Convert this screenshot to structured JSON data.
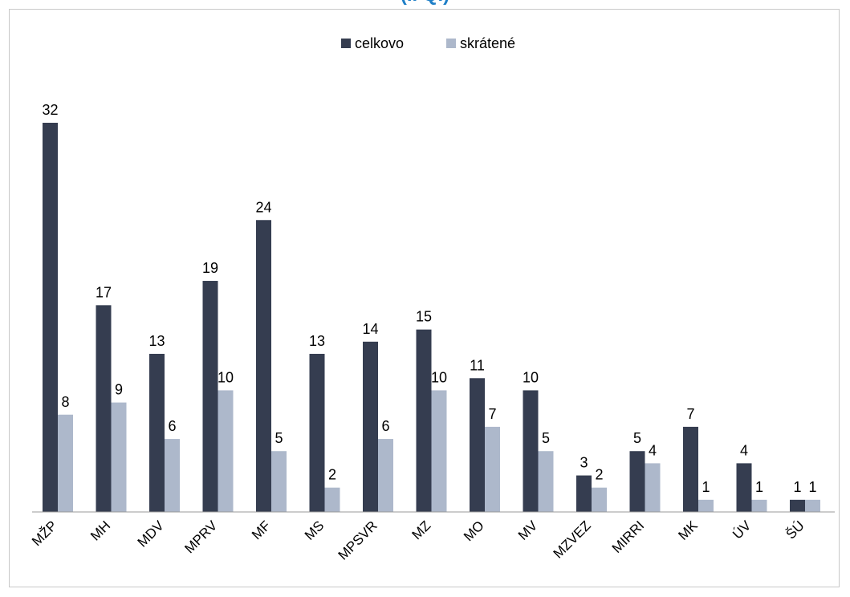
{
  "title_partial": "(I. Q.)",
  "colors": {
    "celkovo": "#353d50",
    "skratene": "#adb8cb",
    "axis": "#999999"
  },
  "chart_data": {
    "type": "bar",
    "title": "",
    "categories": [
      "MŽP",
      "MH",
      "MDV",
      "MPRV",
      "MF",
      "MS",
      "MPSVR",
      "MZ",
      "MO",
      "MV",
      "MZVEZ",
      "MIRRI",
      "MK",
      "ÚV",
      "ŠÚ"
    ],
    "series": [
      {
        "name": "celkovo",
        "values": [
          32,
          17,
          13,
          19,
          24,
          13,
          14,
          15,
          11,
          10,
          3,
          5,
          7,
          4,
          1
        ]
      },
      {
        "name": "skrátené",
        "values": [
          8,
          9,
          6,
          10,
          5,
          2,
          6,
          10,
          7,
          5,
          2,
          4,
          1,
          1,
          1
        ]
      }
    ],
    "ylim": [
      0,
      32
    ],
    "grid": false,
    "legend_position": "top",
    "data_labels": true,
    "xlabel": "",
    "ylabel": ""
  }
}
